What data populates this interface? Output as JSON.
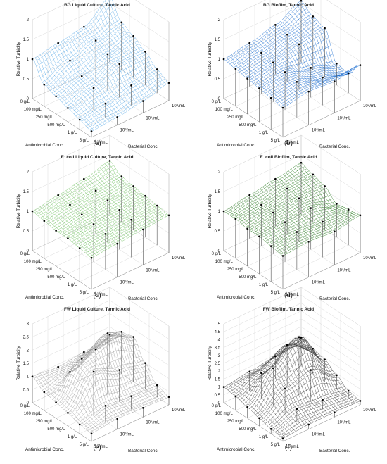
{
  "chart_data": [
    {
      "id": "a",
      "type": "surface3d",
      "title": "BG Liquid Culture, Tannic Acid",
      "caption": "(a)",
      "zlabel": "Relative Turbidity",
      "xlabel": "Antimicrobial Conc.",
      "ylabel": "Bacterial Conc.",
      "x_ticks": [
        "0 g/L",
        "100 mg/L",
        "250 mg/L",
        "500 mg/L",
        "1 g/L",
        "5 g/L"
      ],
      "y_ticks": [
        "10⁷/mL",
        "10⁶/mL",
        "10⁵/mL",
        "10⁴/mL"
      ],
      "zlim": [
        0,
        2
      ],
      "z_ticks": [
        "0",
        "0.5",
        "1",
        "1.5",
        "2"
      ],
      "grid": true,
      "mesh_color": "#5aa9e6",
      "marker_color": "#000000",
      "z": [
        [
          1.0,
          1.1,
          1.2,
          1.65
        ],
        [
          0.55,
          0.85,
          1.05,
          1.2
        ],
        [
          0.45,
          0.65,
          0.9,
          1.05
        ],
        [
          0.35,
          0.55,
          0.85,
          0.85
        ],
        [
          0.25,
          0.35,
          0.5,
          0.6
        ],
        [
          0.15,
          0.2,
          0.3,
          0.45
        ]
      ]
    },
    {
      "id": "b",
      "type": "surface3d",
      "title": "BG Biofilm, Tannic Acid",
      "caption": "(b)",
      "zlabel": "Relative Turbidity",
      "xlabel": "Antimicrobial Conc.",
      "ylabel": "Bacterial Conc.",
      "x_ticks": [
        "0 g/L",
        "100 mg/L",
        "250 mg/L",
        "500 mg/L",
        "1 g/L",
        "5 g/L"
      ],
      "y_ticks": [
        "10⁷/mL",
        "10⁶/mL",
        "10⁵/mL",
        "10⁴/mL"
      ],
      "zlim": [
        0,
        2
      ],
      "z_ticks": [
        "0",
        "0.5",
        "1",
        "1.5",
        "2"
      ],
      "grid": true,
      "mesh_color": "#1f6fd1",
      "marker_color": "#000000",
      "z": [
        [
          1.0,
          1.1,
          1.25,
          1.55
        ],
        [
          0.95,
          1.05,
          1.2,
          1.35
        ],
        [
          0.9,
          1.0,
          1.15,
          1.25
        ],
        [
          0.85,
          0.95,
          0.75,
          0.55
        ],
        [
          0.8,
          0.9,
          0.7,
          0.5
        ],
        [
          0.75,
          0.85,
          0.8,
          0.9
        ]
      ]
    },
    {
      "id": "c",
      "type": "surface3d",
      "title": "E. coli Liquid Culture, Tannic Acid",
      "caption": "(c)",
      "zlabel": "Relative Turbidity",
      "xlabel": "Antimicrobial Conc.",
      "ylabel": "Bacterial Conc.",
      "x_ticks": [
        "0 g/L",
        "100 mg/L",
        "250 mg/L",
        "500 mg/L",
        "1 g/L",
        "5 g/L"
      ],
      "y_ticks": [
        "10⁷/mL",
        "10⁶/mL",
        "10⁵/mL",
        "10⁴/mL"
      ],
      "zlim": [
        0,
        2
      ],
      "z_ticks": [
        "0",
        "0.5",
        "1",
        "1.5",
        "2"
      ],
      "grid": true,
      "mesh_color": "#6cbf5c",
      "marker_color": "#000000",
      "z": [
        [
          1.0,
          1.1,
          1.2,
          1.35
        ],
        [
          0.95,
          1.05,
          1.1,
          1.15
        ],
        [
          0.9,
          1.0,
          1.05,
          1.1
        ],
        [
          0.9,
          0.95,
          1.0,
          1.05
        ],
        [
          0.85,
          0.9,
          0.95,
          1.0
        ],
        [
          0.8,
          0.85,
          0.9,
          0.95
        ]
      ]
    },
    {
      "id": "d",
      "type": "surface3d",
      "title": "E. coli Biofilm, Tannic Acid",
      "caption": "(d)",
      "zlabel": "Relative Turbidity",
      "xlabel": "Antimicrobial Conc.",
      "ylabel": "Bacterial Conc.",
      "x_ticks": [
        "0 g/L",
        "100 mg/L",
        "250 mg/L",
        "500 mg/L",
        "1 g/L",
        "5 g/L"
      ],
      "y_ticks": [
        "10⁷/mL",
        "10⁶/mL",
        "10⁵/mL",
        "10⁴/mL"
      ],
      "zlim": [
        0,
        2
      ],
      "z_ticks": [
        "0",
        "0.5",
        "1",
        "1.5",
        "2"
      ],
      "grid": true,
      "mesh_color": "#2d7d24",
      "marker_color": "#000000",
      "z": [
        [
          1.0,
          1.1,
          1.2,
          1.3
        ],
        [
          1.0,
          1.05,
          1.15,
          1.2
        ],
        [
          0.95,
          1.05,
          1.1,
          1.1
        ],
        [
          0.95,
          1.0,
          1.05,
          0.85
        ],
        [
          0.9,
          0.95,
          0.9,
          0.9
        ],
        [
          0.85,
          0.9,
          0.85,
          0.95
        ]
      ]
    },
    {
      "id": "e",
      "type": "surface3d",
      "title": "FW Liquid Culture, Tannic Acid",
      "caption": "(e)",
      "zlabel": "Relative Turbidity",
      "xlabel": "Antimicrobial Conc.",
      "ylabel": "Bacterial Conc.",
      "x_ticks": [
        "0 g/L",
        "100 mg/L",
        "250 mg/L",
        "500 mg/L",
        "1 g/L",
        "5 g/L"
      ],
      "y_ticks": [
        "10⁷/mL",
        "10⁶/mL",
        "10⁵/mL",
        "10⁴/mL"
      ],
      "zlim": [
        0,
        3
      ],
      "z_ticks": [
        "0",
        "0.5",
        "1",
        "1.5",
        "2",
        "2.5",
        "3"
      ],
      "grid": true,
      "mesh_color": "#9a9a9a",
      "marker_color": "#000000",
      "z": [
        [
          1.0,
          0.9,
          1.0,
          1.2
        ],
        [
          0.7,
          1.0,
          1.4,
          1.6
        ],
        [
          0.6,
          1.8,
          2.3,
          1.7
        ],
        [
          0.5,
          1.6,
          1.2,
          1.0
        ],
        [
          0.35,
          0.6,
          0.5,
          0.45
        ],
        [
          0.3,
          0.4,
          0.35,
          0.3
        ]
      ]
    },
    {
      "id": "f",
      "type": "surface3d",
      "title": "FW Biofilm, Tannic Acid",
      "caption": "(f)",
      "zlabel": "Relative Turbidity",
      "xlabel": "Antimicrobial Conc.",
      "ylabel": "Bacterial Conc.",
      "x_ticks": [
        "0 g/L",
        "100 mg/L",
        "250 mg/L",
        "500 mg/L",
        "1 g/L",
        "5 g/L"
      ],
      "y_ticks": [
        "10⁷/mL",
        "10⁶/mL",
        "10⁵/mL",
        "10⁴/mL"
      ],
      "zlim": [
        0,
        5
      ],
      "z_ticks": [
        "0",
        "0.5",
        "1",
        "1.5",
        "2",
        "2.5",
        "3",
        "3.5",
        "4",
        "4.5",
        "5"
      ],
      "grid": true,
      "mesh_color": "#3a3a3a",
      "marker_color": "#000000",
      "z": [
        [
          1.0,
          1.2,
          1.4,
          1.8
        ],
        [
          0.9,
          1.6,
          2.6,
          1.6
        ],
        [
          0.7,
          2.4,
          3.6,
          1.4
        ],
        [
          0.5,
          1.6,
          2.0,
          0.9
        ],
        [
          0.3,
          0.8,
          0.6,
          0.4
        ],
        [
          0.2,
          0.3,
          0.3,
          0.25
        ]
      ]
    }
  ]
}
